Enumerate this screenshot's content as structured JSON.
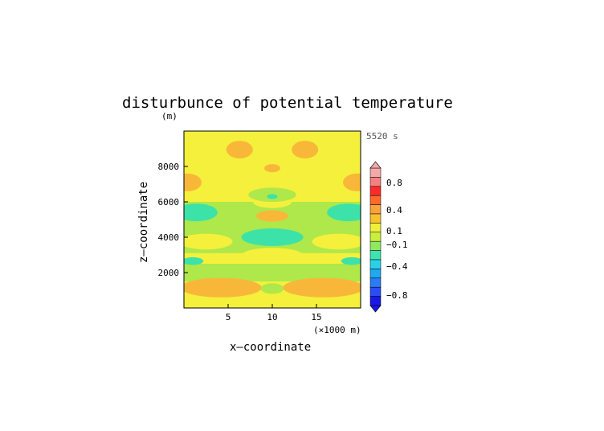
{
  "chart_data": {
    "type": "heatmap",
    "title": "disturbunce of potential temperature",
    "y_unit": "(m)",
    "time_label": "5520 s",
    "xlabel": "x—coordinate",
    "ylabel": "z—coordinate",
    "x_unit": "(×1000 m)",
    "xlim": [
      0,
      20
    ],
    "ylim": [
      0,
      10000
    ],
    "x_ticks": [
      "5",
      "10",
      "15"
    ],
    "x_tick_values": [
      5,
      10,
      15
    ],
    "y_ticks": [
      "2000",
      "4000",
      "6000",
      "8000"
    ],
    "y_tick_values": [
      2000,
      4000,
      6000,
      8000
    ],
    "colorbar": {
      "labels": [
        "0.8",
        "0.4",
        "0.1",
        "−0.1",
        "−0.4",
        "−0.8"
      ],
      "levels": [
        {
          "color": "#f4a9a9"
        },
        {
          "color": "#f48080"
        },
        {
          "color": "#ff2a2a"
        },
        {
          "color": "#ff6a2a"
        },
        {
          "color": "#f9a23a"
        },
        {
          "color": "#fbc02d"
        },
        {
          "color": "#f0f03a"
        },
        {
          "color": "#c8ee3e"
        },
        {
          "color": "#90e860"
        },
        {
          "color": "#3ee4b0"
        },
        {
          "color": "#2ad0e8"
        },
        {
          "color": "#20a8f0"
        },
        {
          "color": "#2a7cf4"
        },
        {
          "color": "#2a4cf4"
        },
        {
          "color": "#1818e8"
        }
      ]
    },
    "field_background_color": "#f4f03c",
    "regions": [
      {
        "shape": "band",
        "color": "#aee84a",
        "y_center": 2000,
        "y_half": 500
      },
      {
        "shape": "band",
        "color": "#aee84a",
        "y_center": 3800,
        "y_half": 700
      },
      {
        "shape": "band",
        "color": "#aee84a",
        "y_center": 5200,
        "y_half": 800
      },
      {
        "shape": "ellipse",
        "color": "#f4f03c",
        "cx": 10,
        "cy": 3000,
        "rx": 3.4,
        "ry": 400
      },
      {
        "shape": "ellipse",
        "color": "#f4f03c",
        "cx": 2.5,
        "cy": 3750,
        "rx": 3.0,
        "ry": 450
      },
      {
        "shape": "ellipse",
        "color": "#f4f03c",
        "cx": 17.5,
        "cy": 3750,
        "rx": 3.0,
        "ry": 450
      },
      {
        "shape": "ellipse",
        "color": "#f4f03c",
        "cx": 10,
        "cy": 6000,
        "rx": 2.2,
        "ry": 350
      },
      {
        "shape": "ellipse",
        "color": "#3de2a8",
        "cx": 10,
        "cy": 4000,
        "rx": 3.5,
        "ry": 500
      },
      {
        "shape": "ellipse",
        "color": "#3de2a8",
        "cx": 1.4,
        "cy": 5400,
        "rx": 2.4,
        "ry": 500
      },
      {
        "shape": "ellipse",
        "color": "#3de2a8",
        "cx": 18.6,
        "cy": 5400,
        "rx": 2.4,
        "ry": 500
      },
      {
        "shape": "ellipse",
        "color": "#3de2a8",
        "cx": 1.0,
        "cy": 2650,
        "rx": 1.2,
        "ry": 220
      },
      {
        "shape": "ellipse",
        "color": "#3de2a8",
        "cx": 19.0,
        "cy": 2650,
        "rx": 1.2,
        "ry": 220
      },
      {
        "shape": "ellipse",
        "color": "#aee84a",
        "cx": 10,
        "cy": 6400,
        "rx": 2.7,
        "ry": 400
      },
      {
        "shape": "ellipse",
        "color": "#3de2a8",
        "cx": 10,
        "cy": 6300,
        "rx": 0.6,
        "ry": 140
      },
      {
        "shape": "ellipse",
        "color": "#f9b73a",
        "cx": 10,
        "cy": 5200,
        "rx": 1.8,
        "ry": 320
      },
      {
        "shape": "ellipse",
        "color": "#f9b73a",
        "cx": 10,
        "cy": 7900,
        "rx": 0.9,
        "ry": 230
      },
      {
        "shape": "ellipse",
        "color": "#f9b73a",
        "cx": 6.3,
        "cy": 8950,
        "rx": 1.5,
        "ry": 500
      },
      {
        "shape": "ellipse",
        "color": "#f9b73a",
        "cx": 13.7,
        "cy": 8950,
        "rx": 1.5,
        "ry": 500
      },
      {
        "shape": "ellipse",
        "color": "#f9b73a",
        "cx": 0.4,
        "cy": 7100,
        "rx": 1.6,
        "ry": 500
      },
      {
        "shape": "ellipse",
        "color": "#f9b73a",
        "cx": 19.6,
        "cy": 7100,
        "rx": 1.6,
        "ry": 500
      },
      {
        "shape": "ellipse",
        "color": "#f9b73a",
        "cx": 4.2,
        "cy": 1150,
        "rx": 4.6,
        "ry": 550
      },
      {
        "shape": "ellipse",
        "color": "#f9b73a",
        "cx": 15.8,
        "cy": 1150,
        "rx": 4.6,
        "ry": 550
      },
      {
        "shape": "ellipse",
        "color": "#aee84a",
        "cx": 10,
        "cy": 1100,
        "rx": 1.3,
        "ry": 300
      }
    ]
  }
}
